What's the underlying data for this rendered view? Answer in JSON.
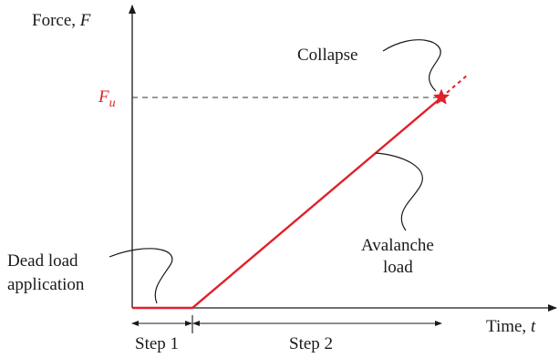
{
  "axes": {
    "y_label": "Force, ",
    "y_symbol": "F",
    "x_label": "Time, ",
    "x_symbol": "t"
  },
  "level": {
    "symbol": "F",
    "subscript": "u"
  },
  "annotations": {
    "collapse": "Collapse",
    "avalanche_line1": "Avalanche",
    "avalanche_line2": "load",
    "dead_load_line1": "Dead load",
    "dead_load_line2": "application"
  },
  "steps": {
    "step1": "Step 1",
    "step2": "Step 2"
  },
  "colors": {
    "load_path": "#e0202a",
    "axis": "#1a1a1a",
    "dashed_level": "#333333"
  }
}
